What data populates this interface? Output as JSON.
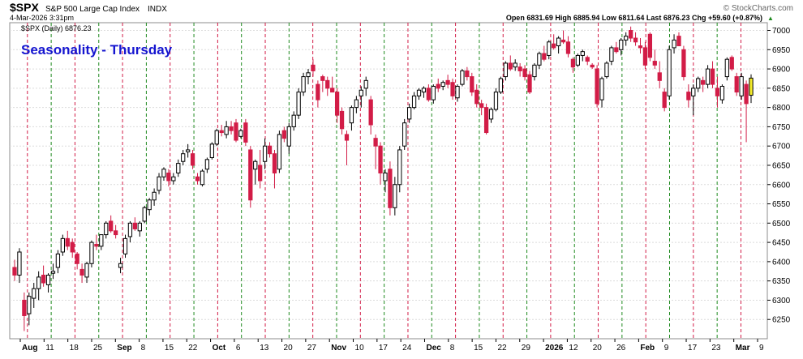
{
  "header": {
    "symbol": "$SPX",
    "name": "S&P 500 Large Cap Index",
    "exchange": "INDX",
    "date": "4-Mar-2026 3:31pm",
    "watermark": "© StockCharts.com",
    "ohlc": [
      {
        "label": "Open",
        "value": "6831.69"
      },
      {
        "label": "High",
        "value": "6885.94"
      },
      {
        "label": "Low",
        "value": "6811.64"
      },
      {
        "label": "Last",
        "value": "6876.23"
      },
      {
        "label": "Chg",
        "value": "+59.60 (+0.87%)"
      }
    ],
    "legend_label": "$SPX (Daily) 6876.23"
  },
  "chart_data": {
    "type": "candlestick",
    "title": "Seasonality - Thursday",
    "ylim": [
      6200,
      7020
    ],
    "yticks": [
      6250,
      6300,
      6350,
      6400,
      6450,
      6500,
      6550,
      6600,
      6650,
      6700,
      6750,
      6800,
      6850,
      6900,
      6950,
      7000
    ],
    "grid": true,
    "x_labels": [
      "Aug",
      "11",
      "18",
      "25",
      "Sep",
      "8",
      "15",
      "22",
      "Oct",
      "6",
      "13",
      "20",
      "27",
      "Nov",
      "10",
      "17",
      "24",
      "Dec",
      "8",
      "15",
      "22",
      "29",
      "2026",
      "12",
      "20",
      "26",
      "Feb",
      "9",
      "17",
      "23",
      "Mar",
      "9"
    ],
    "colors": {
      "up": "#ffffff",
      "down": "#d21c47",
      "outline": "#000000",
      "current": "#f2ea2a",
      "red_line": "#d21c47",
      "green_line": "#1e8a1e",
      "title": "#1515d0",
      "grid": "#dcdcdc"
    },
    "series": [
      {
        "name": "$SPX (Daily)",
        "values": [
          [
            6385,
            6405,
            6350,
            6365
          ],
          [
            6365,
            6435,
            6345,
            6425
          ],
          [
            6300,
            6320,
            6220,
            6260
          ],
          [
            6265,
            6320,
            6235,
            6310
          ],
          [
            6305,
            6345,
            6280,
            6330
          ],
          [
            6330,
            6375,
            6300,
            6360
          ],
          [
            6365,
            6390,
            6335,
            6345
          ],
          [
            6340,
            6370,
            6320,
            6365
          ],
          [
            6370,
            6395,
            6355,
            6375
          ],
          [
            6385,
            6430,
            6370,
            6420
          ],
          [
            6425,
            6470,
            6415,
            6460
          ],
          [
            6460,
            6480,
            6430,
            6440
          ],
          [
            6450,
            6460,
            6410,
            6425
          ],
          [
            6420,
            6425,
            6380,
            6395
          ],
          [
            6380,
            6395,
            6345,
            6365
          ],
          [
            6360,
            6400,
            6345,
            6395
          ],
          [
            6395,
            6455,
            6385,
            6450
          ],
          [
            6445,
            6470,
            6430,
            6440
          ],
          [
            6440,
            6470,
            6430,
            6470
          ],
          [
            6470,
            6505,
            6460,
            6500
          ],
          [
            6505,
            6520,
            6475,
            6480
          ],
          [
            6480,
            6495,
            6460,
            6470
          ],
          [
            6385,
            6410,
            6370,
            6395
          ],
          [
            6420,
            6470,
            6410,
            6460
          ],
          [
            6465,
            6505,
            6450,
            6500
          ],
          [
            6500,
            6515,
            6480,
            6485
          ],
          [
            6480,
            6505,
            6465,
            6500
          ],
          [
            6505,
            6545,
            6500,
            6540
          ],
          [
            6535,
            6565,
            6520,
            6560
          ],
          [
            6560,
            6590,
            6545,
            6580
          ],
          [
            6585,
            6630,
            6575,
            6620
          ],
          [
            6620,
            6645,
            6610,
            6640
          ],
          [
            6630,
            6640,
            6595,
            6610
          ],
          [
            6610,
            6630,
            6600,
            6620
          ],
          [
            6630,
            6665,
            6620,
            6655
          ],
          [
            6660,
            6690,
            6650,
            6680
          ],
          [
            6685,
            6705,
            6670,
            6690
          ],
          [
            6680,
            6690,
            6640,
            6650
          ],
          [
            6620,
            6630,
            6600,
            6610
          ],
          [
            6600,
            6640,
            6595,
            6635
          ],
          [
            6640,
            6670,
            6630,
            6665
          ],
          [
            6670,
            6710,
            6665,
            6705
          ],
          [
            6705,
            6745,
            6700,
            6740
          ],
          [
            6740,
            6755,
            6725,
            6735
          ],
          [
            6730,
            6765,
            6720,
            6750
          ],
          [
            6750,
            6765,
            6730,
            6740
          ],
          [
            6760,
            6770,
            6710,
            6715
          ],
          [
            6725,
            6745,
            6720,
            6740
          ],
          [
            6760,
            6770,
            6700,
            6710
          ],
          [
            6690,
            6700,
            6540,
            6560
          ],
          [
            6640,
            6665,
            6600,
            6660
          ],
          [
            6650,
            6690,
            6590,
            6610
          ],
          [
            6660,
            6720,
            6640,
            6700
          ],
          [
            6700,
            6710,
            6670,
            6680
          ],
          [
            6680,
            6690,
            6590,
            6630
          ],
          [
            6640,
            6740,
            6630,
            6730
          ],
          [
            6740,
            6750,
            6710,
            6720
          ],
          [
            6700,
            6760,
            6680,
            6750
          ],
          [
            6750,
            6790,
            6740,
            6780
          ],
          [
            6780,
            6850,
            6770,
            6840
          ],
          [
            6840,
            6890,
            6830,
            6880
          ],
          [
            6880,
            6900,
            6860,
            6890
          ],
          [
            6910,
            6925,
            6880,
            6895
          ],
          [
            6860,
            6870,
            6800,
            6820
          ],
          [
            6880,
            6885,
            6840,
            6870
          ],
          [
            6870,
            6880,
            6830,
            6850
          ],
          [
            6850,
            6880,
            6840,
            6840
          ],
          [
            6840,
            6850,
            6760,
            6780
          ],
          [
            6790,
            6800,
            6730,
            6745
          ],
          [
            6730,
            6740,
            6650,
            6715
          ],
          [
            6760,
            6805,
            6740,
            6800
          ],
          [
            6800,
            6830,
            6785,
            6820
          ],
          [
            6830,
            6855,
            6800,
            6845
          ],
          [
            6850,
            6880,
            6830,
            6870
          ],
          [
            6820,
            6830,
            6730,
            6755
          ],
          [
            6720,
            6730,
            6640,
            6700
          ],
          [
            6700,
            6710,
            6600,
            6630
          ],
          [
            6610,
            6640,
            6580,
            6630
          ],
          [
            6640,
            6660,
            6520,
            6540
          ],
          [
            6540,
            6620,
            6520,
            6600
          ],
          [
            6600,
            6700,
            6580,
            6690
          ],
          [
            6700,
            6770,
            6690,
            6760
          ],
          [
            6770,
            6810,
            6760,
            6800
          ],
          [
            6800,
            6840,
            6795,
            6830
          ],
          [
            6830,
            6850,
            6820,
            6845
          ],
          [
            6840,
            6855,
            6825,
            6850
          ],
          [
            6850,
            6860,
            6815,
            6820
          ],
          [
            6820,
            6860,
            6810,
            6855
          ],
          [
            6860,
            6875,
            6840,
            6850
          ],
          [
            6855,
            6870,
            6845,
            6865
          ],
          [
            6870,
            6885,
            6850,
            6860
          ],
          [
            6865,
            6875,
            6820,
            6830
          ],
          [
            6825,
            6860,
            6815,
            6855
          ],
          [
            6860,
            6900,
            6855,
            6895
          ],
          [
            6895,
            6905,
            6870,
            6880
          ],
          [
            6880,
            6890,
            6830,
            6840
          ],
          [
            6845,
            6860,
            6800,
            6810
          ],
          [
            6810,
            6820,
            6780,
            6800
          ],
          [
            6800,
            6810,
            6730,
            6735
          ],
          [
            6770,
            6800,
            6760,
            6795
          ],
          [
            6795,
            6850,
            6790,
            6840
          ],
          [
            6840,
            6880,
            6835,
            6875
          ],
          [
            6880,
            6920,
            6870,
            6915
          ],
          [
            6915,
            6935,
            6895,
            6900
          ],
          [
            6905,
            6925,
            6895,
            6915
          ],
          [
            6905,
            6915,
            6880,
            6895
          ],
          [
            6900,
            6910,
            6870,
            6880
          ],
          [
            6885,
            6895,
            6835,
            6840
          ],
          [
            6880,
            6915,
            6870,
            6910
          ],
          [
            6910,
            6945,
            6900,
            6940
          ],
          [
            6940,
            6960,
            6920,
            6925
          ],
          [
            6935,
            6975,
            6925,
            6970
          ],
          [
            6965,
            6990,
            6950,
            6955
          ],
          [
            6960,
            6985,
            6940,
            6980
          ],
          [
            6975,
            7000,
            6965,
            6970
          ],
          [
            6970,
            6985,
            6930,
            6940
          ],
          [
            6925,
            6930,
            6890,
            6905
          ],
          [
            6910,
            6940,
            6905,
            6935
          ],
          [
            6935,
            6950,
            6920,
            6945
          ],
          [
            6930,
            6935,
            6910,
            6920
          ],
          [
            6910,
            6915,
            6900,
            6905
          ],
          [
            6900,
            6910,
            6800,
            6810
          ],
          [
            6820,
            6880,
            6800,
            6875
          ],
          [
            6880,
            6920,
            6875,
            6915
          ],
          [
            6920,
            6960,
            6910,
            6955
          ],
          [
            6955,
            6970,
            6940,
            6945
          ],
          [
            6950,
            6980,
            6935,
            6975
          ],
          [
            6975,
            6995,
            6960,
            6985
          ],
          [
            7000,
            7010,
            6970,
            6980
          ],
          [
            6980,
            6995,
            6960,
            6970
          ],
          [
            6960,
            6980,
            6940,
            6955
          ],
          [
            6955,
            6970,
            6900,
            6910
          ],
          [
            6990,
            6995,
            6920,
            6930
          ],
          [
            6920,
            6950,
            6900,
            6910
          ],
          [
            6890,
            6920,
            6850,
            6870
          ],
          [
            6840,
            6850,
            6790,
            6800
          ],
          [
            6830,
            6960,
            6820,
            6950
          ],
          [
            6955,
            6990,
            6940,
            6975
          ],
          [
            6985,
            6995,
            6960,
            6960
          ],
          [
            6950,
            6960,
            6870,
            6880
          ],
          [
            6840,
            6860,
            6800,
            6820
          ],
          [
            6830,
            6860,
            6780,
            6850
          ],
          [
            6850,
            6880,
            6840,
            6875
          ],
          [
            6870,
            6880,
            6840,
            6860
          ],
          [
            6860,
            6910,
            6850,
            6900
          ],
          [
            6900,
            6920,
            6850,
            6860
          ],
          [
            6850,
            6880,
            6800,
            6830
          ],
          [
            6820,
            6860,
            6810,
            6855
          ],
          [
            6880,
            6930,
            6870,
            6925
          ],
          [
            6930,
            6935,
            6895,
            6900
          ],
          [
            6880,
            6890,
            6830,
            6840
          ],
          [
            6830,
            6890,
            6820,
            6880
          ],
          [
            6860,
            6870,
            6710,
            6810
          ],
          [
            6831.69,
            6885.94,
            6811.64,
            6876.23
          ]
        ]
      }
    ]
  }
}
